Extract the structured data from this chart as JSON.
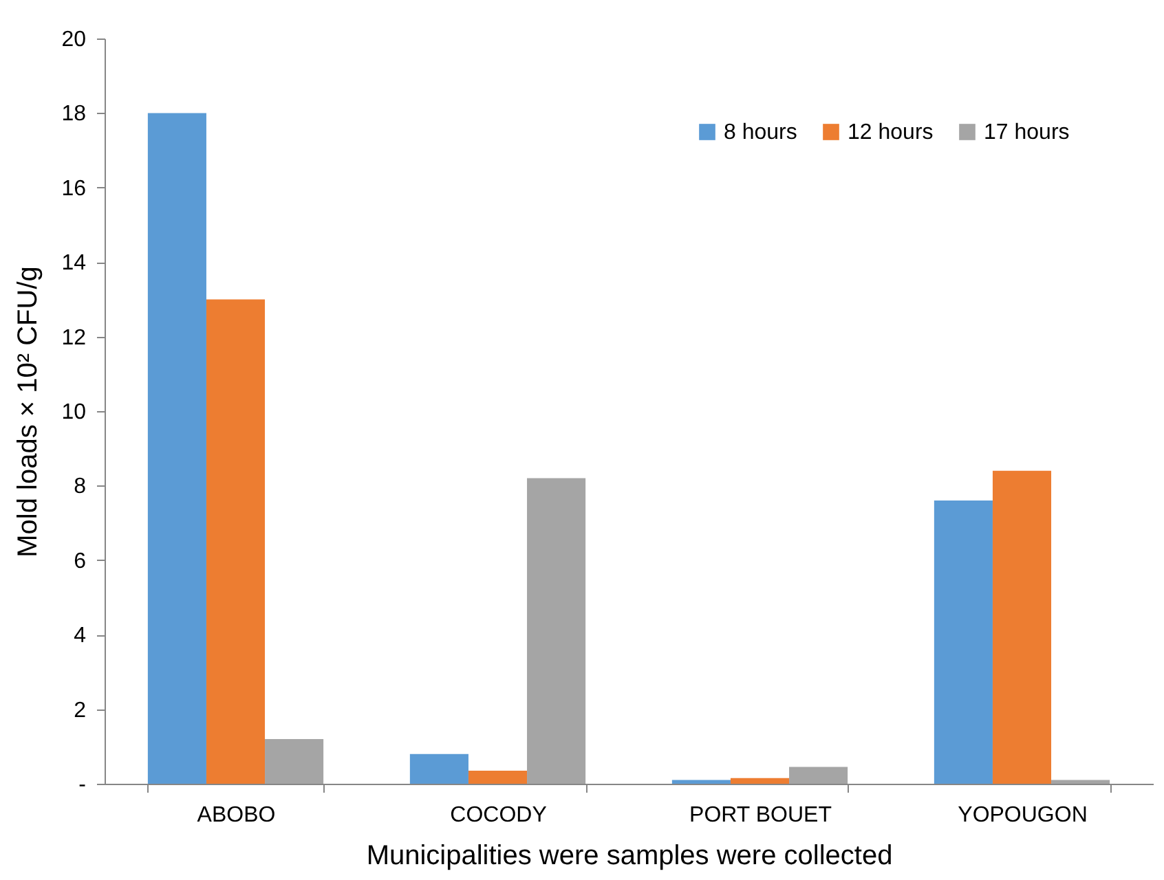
{
  "chart_data": {
    "type": "bar",
    "xlabel": "Municipalities were samples were collected",
    "ylabel": "Mold loads × 10² CFU/g",
    "categories": [
      "ABOBO",
      "COCODY",
      "PORT BOUET",
      "YOPOUGON"
    ],
    "series": [
      {
        "name": "8 hours",
        "color": "#5b9bd5",
        "values": [
          18,
          0.8,
          0.1,
          7.6
        ]
      },
      {
        "name": "12 hours",
        "color": "#ed7d31",
        "values": [
          13,
          0.35,
          0.15,
          8.4
        ]
      },
      {
        "name": "17 hours",
        "color": "#a5a5a5",
        "values": [
          1.2,
          8.2,
          0.45,
          0.1
        ]
      }
    ],
    "ylim": [
      0,
      20
    ],
    "yticks": [
      {
        "value": 0,
        "label": "-"
      },
      2,
      4,
      6,
      8,
      10,
      12,
      14,
      16,
      18,
      20
    ],
    "grid": false,
    "legend": "top right"
  }
}
